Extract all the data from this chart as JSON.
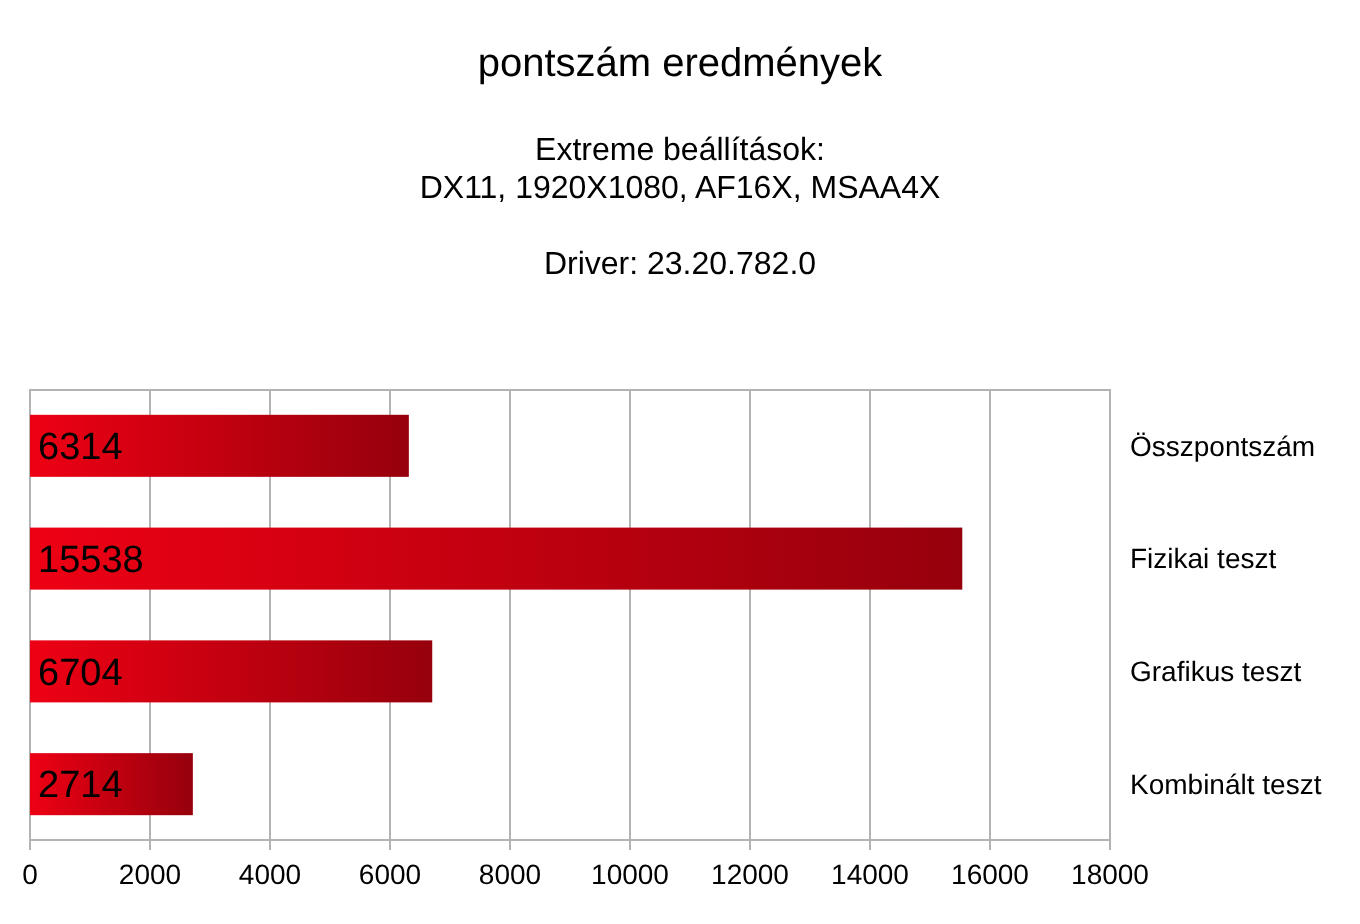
{
  "chart_data": {
    "type": "bar",
    "orientation": "horizontal",
    "title": "pontszám eredmények",
    "subtitle": "Extreme beállítások:\nDX11, 1920X1080, AF16X, MSAA4X\n\nDriver: 23.20.782.0",
    "categories": [
      "Összpontszám",
      "Fizikai teszt",
      "Grafikus teszt",
      "Kombinált teszt"
    ],
    "values": [
      6314,
      15538,
      6704,
      2714
    ],
    "color": "#c00010",
    "xlim": [
      0,
      18000
    ],
    "xticks": [
      0,
      2000,
      4000,
      6000,
      8000,
      10000,
      12000,
      14000,
      16000,
      18000
    ],
    "grid": "x",
    "data_labels": true
  }
}
